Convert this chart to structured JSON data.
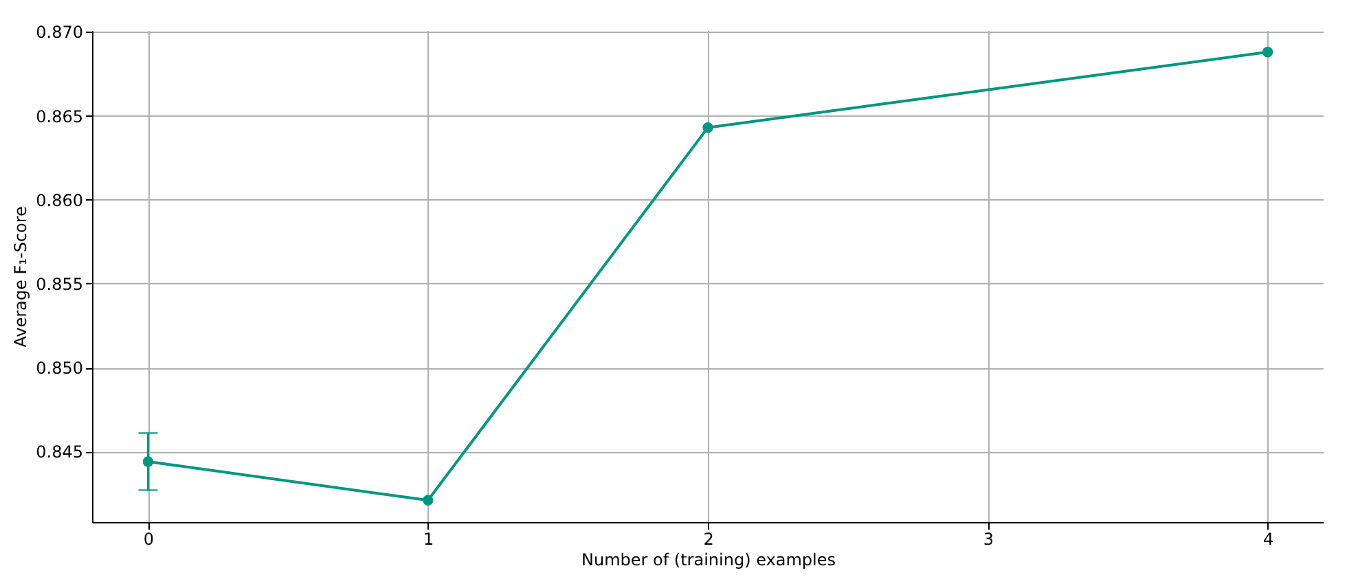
{
  "chart_data": {
    "type": "line",
    "xlabel": "Number of (training) examples",
    "ylabel": "Average F₁-Score",
    "x": [
      0,
      1,
      2,
      4
    ],
    "series": [
      {
        "color": "#009682",
        "values": [
          0.8444,
          0.8421,
          0.8643,
          0.8688
        ],
        "errors": [
          0.0017,
          null,
          null,
          null
        ]
      }
    ],
    "xlim": [
      -0.2,
      4.2
    ],
    "xticks": [
      0,
      1,
      2,
      3,
      4
    ],
    "ylim": [
      0.8408,
      0.8701
    ],
    "yticks": [
      0.845,
      {
        "value": 0.85,
        "label": "0.850"
      },
      0.855,
      {
        "value": 0.86,
        "label": "0.860"
      },
      0.865,
      {
        "value": 0.87,
        "label": "0.870"
      }
    ],
    "grid": true,
    "marker": "circle",
    "line_style": "solid"
  }
}
